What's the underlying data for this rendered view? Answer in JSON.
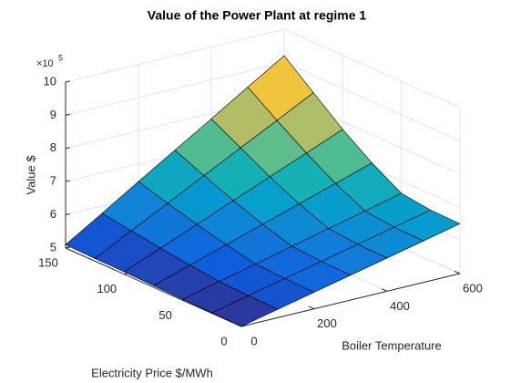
{
  "chart_data": {
    "type": "surface",
    "title": "Value of the Power Plant at regime 1",
    "xlabel": "Boiler Temperature",
    "ylabel": "Electricity Price $/MWh",
    "zlabel": "Value $",
    "z_multiplier_base": "×10",
    "z_multiplier_exponent": "5",
    "x": [
      0,
      100,
      200,
      300,
      400,
      500,
      600
    ],
    "y": [
      0,
      25,
      50,
      75,
      100,
      125,
      150
    ],
    "z": [
      [
        5.0,
        5.25,
        5.5,
        5.75,
        6.0,
        6.25,
        6.5
      ],
      [
        5.02,
        5.27,
        5.52,
        5.77,
        6.02,
        6.27,
        6.52
      ],
      [
        5.03,
        5.3,
        5.56,
        5.83,
        6.1,
        6.36,
        6.63
      ],
      [
        5.05,
        5.4,
        5.75,
        6.1,
        6.45,
        6.8,
        7.15
      ],
      [
        5.07,
        5.52,
        5.97,
        6.42,
        6.87,
        7.32,
        7.77
      ],
      [
        5.08,
        5.65,
        6.21,
        6.78,
        7.35,
        7.91,
        8.48
      ],
      [
        5.1,
        5.78,
        6.47,
        7.15,
        7.83,
        8.52,
        9.2
      ]
    ],
    "xlim": [
      0,
      600
    ],
    "ylim": [
      0,
      150
    ],
    "zlim": [
      5,
      10
    ],
    "xticks": [
      0,
      200,
      400,
      600
    ],
    "yticks": [
      0,
      50,
      100,
      150
    ],
    "zticks": [
      5,
      6,
      7,
      8,
      9,
      10
    ],
    "colormap": "parula",
    "grid": true
  }
}
